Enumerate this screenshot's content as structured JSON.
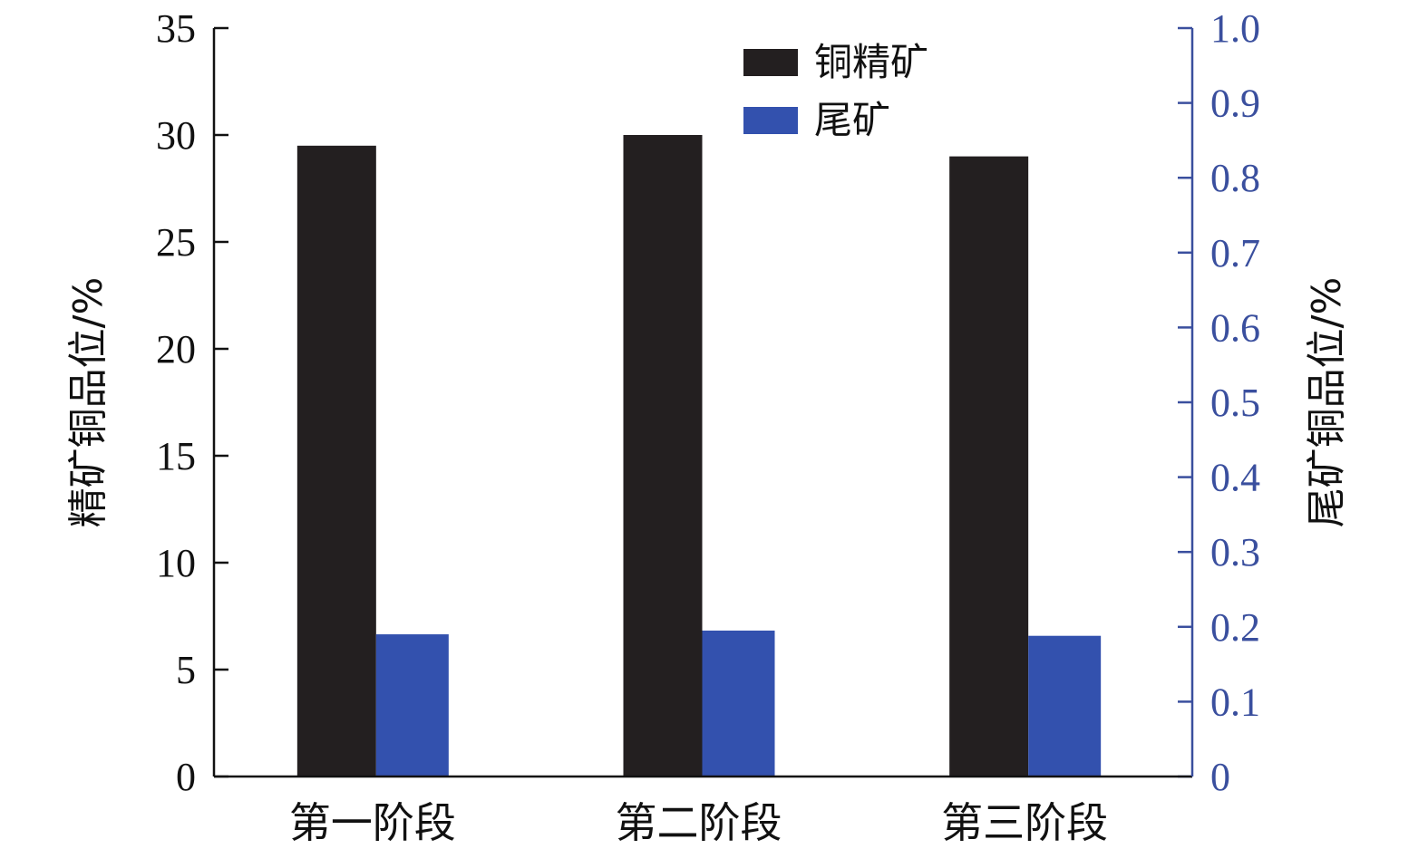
{
  "chart_data": {
    "type": "bar",
    "categories": [
      "第一阶段",
      "第二阶段",
      "第三阶段"
    ],
    "series": [
      {
        "name": "铜精矿",
        "axis": "left",
        "color": "#231f20",
        "values": [
          29.5,
          30.0,
          29.0
        ]
      },
      {
        "name": "尾矿",
        "axis": "right",
        "color": "#3351ae",
        "values": [
          0.19,
          0.195,
          0.188
        ]
      }
    ],
    "ylabel_left": "精矿铜品位/%",
    "ylabel_right": "尾矿铜品位/%",
    "ylim_left": [
      0,
      35
    ],
    "ylim_right": [
      0,
      1.0
    ],
    "yticks_left": [
      "0",
      "5",
      "10",
      "15",
      "20",
      "25",
      "30",
      "35"
    ],
    "yticks_right": [
      "0",
      "0.1",
      "0.2",
      "0.3",
      "0.4",
      "0.5",
      "0.6",
      "0.7",
      "0.8",
      "0.9",
      "1.0"
    ],
    "right_axis_color": "#3a4f9e",
    "grid": false,
    "legend_position": "top-center"
  }
}
